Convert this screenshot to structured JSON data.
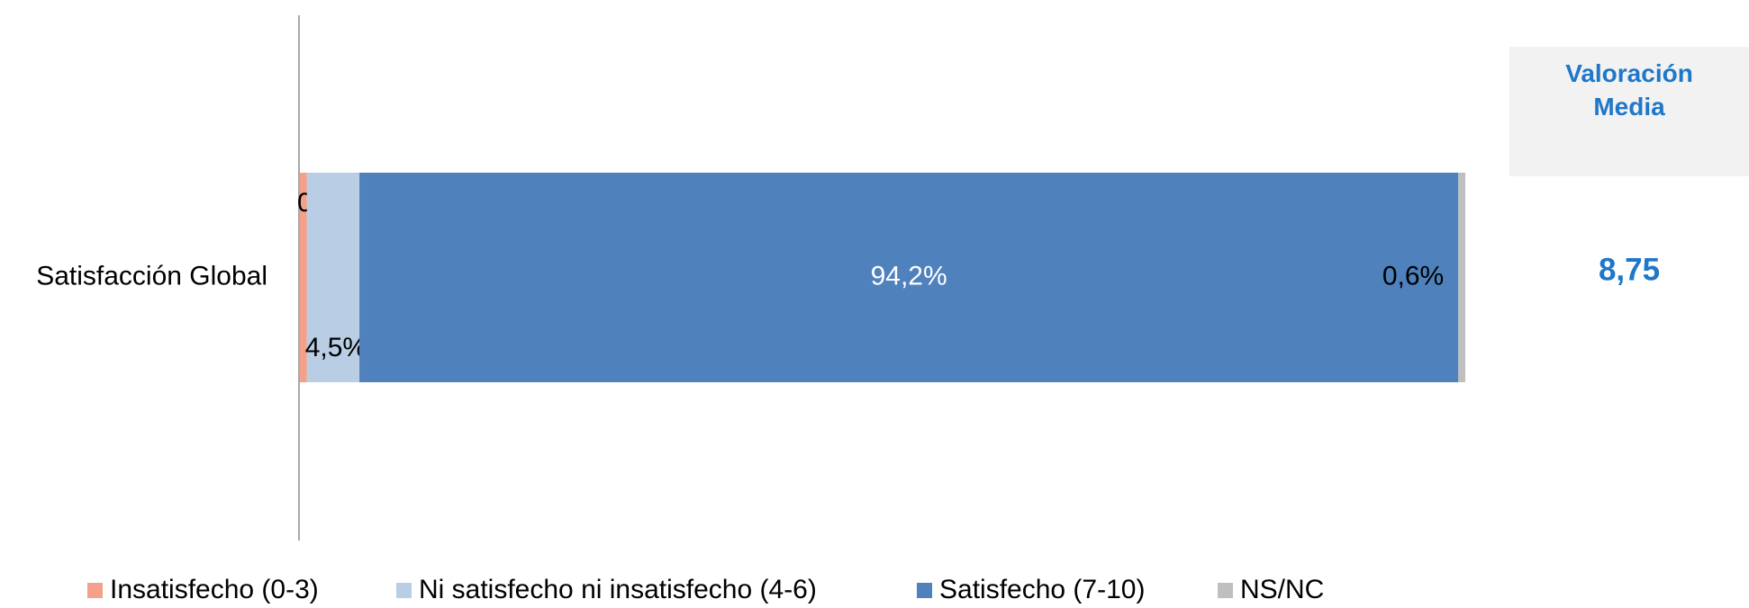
{
  "chart_data": {
    "type": "stacked_hbar",
    "categories": [
      "Satisfacción Global"
    ],
    "series": [
      {
        "name": "Insatisfecho (0-3)",
        "color": "#f4a08a",
        "values": [
          0.6
        ],
        "value_labels": [
          "0,6%"
        ]
      },
      {
        "name": "Ni satisfecho ni insatisfecho (4-6)",
        "color": "#b9cde5",
        "values": [
          4.5
        ],
        "value_labels": [
          "4,5%"
        ]
      },
      {
        "name": "Satisfecho (7-10)",
        "color": "#4f81bd",
        "values": [
          94.2
        ],
        "value_labels": [
          "94,2%"
        ]
      },
      {
        "name": "NS/NC",
        "color": "#bfbfbf",
        "values": [
          0.6
        ],
        "value_labels": [
          "0,6%"
        ]
      }
    ],
    "legend": "bottom",
    "summary": {
      "title": "Valoración Media",
      "value_label": "8,75"
    }
  }
}
